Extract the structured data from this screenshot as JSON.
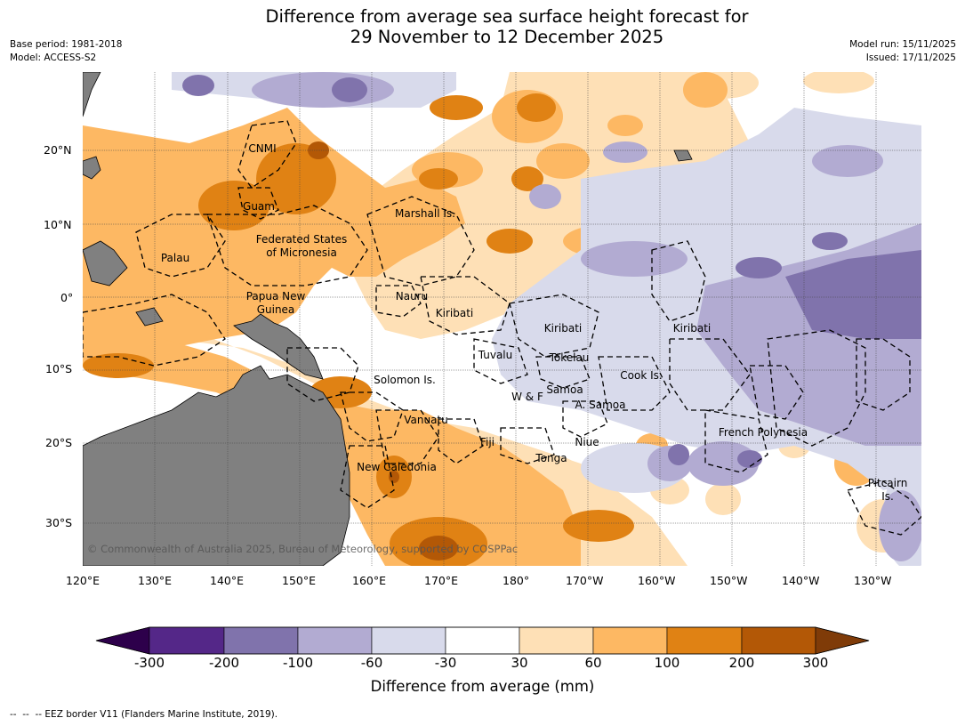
{
  "title": {
    "line1": "Difference from average sea surface height forecast for",
    "line2": "29 November to 12 December 2025"
  },
  "meta": {
    "base_period": "Base period: 1981-2018",
    "model": "Model: ACCESS-S2",
    "model_run": "Model run: 15/11/2025",
    "issued": "Issued: 17/11/2025"
  },
  "map": {
    "lon_labels": [
      "120°E",
      "130°E",
      "140°E",
      "150°E",
      "160°E",
      "170°E",
      "180°",
      "170°W",
      "160°W",
      "150°W",
      "140°W",
      "130°W"
    ],
    "lat_labels": [
      "20°N",
      "10°N",
      "0°",
      "10°S",
      "20°S",
      "30°S"
    ],
    "regions": [
      {
        "name": "CNMI"
      },
      {
        "name": "Guam"
      },
      {
        "name": "Marshall Is."
      },
      {
        "name": "Palau"
      },
      {
        "name": "Federated States"
      },
      {
        "name": "of Micronesia"
      },
      {
        "name": "Nauru"
      },
      {
        "name": "Papua New"
      },
      {
        "name": "Guinea"
      },
      {
        "name": "Kiribati"
      },
      {
        "name": "Kiribati"
      },
      {
        "name": "Kiribati"
      },
      {
        "name": "Tuvalu"
      },
      {
        "name": "Tokelau"
      },
      {
        "name": "Solomon Is."
      },
      {
        "name": "W & F"
      },
      {
        "name": "Samoa"
      },
      {
        "name": "A. Samoa"
      },
      {
        "name": "Cook Is."
      },
      {
        "name": "Vanuatu"
      },
      {
        "name": "Fiji"
      },
      {
        "name": "Niue"
      },
      {
        "name": "Tonga"
      },
      {
        "name": "French Polynesia"
      },
      {
        "name": "New Caledonia"
      },
      {
        "name": "Pitcairn"
      },
      {
        "name": "Is."
      }
    ],
    "copyright": "© Commonwealth of Australia 2025, Bureau of Meteorology, supported by COSPPac"
  },
  "colorbar": {
    "colors": [
      "#2d004b",
      "#542788",
      "#8073ac",
      "#b2abd2",
      "#d8daeb",
      "#ffffff",
      "#fee0b6",
      "#fdb863",
      "#e08214",
      "#b35806",
      "#7f3b08"
    ],
    "ticks": [
      "-300",
      "-200",
      "-100",
      "-60",
      "-30",
      "30",
      "60",
      "100",
      "200",
      "300"
    ],
    "label": "Difference from average (mm)"
  },
  "footnote": "--  --  -- EEZ border V11 (Flanders Marine Institute, 2019)."
}
